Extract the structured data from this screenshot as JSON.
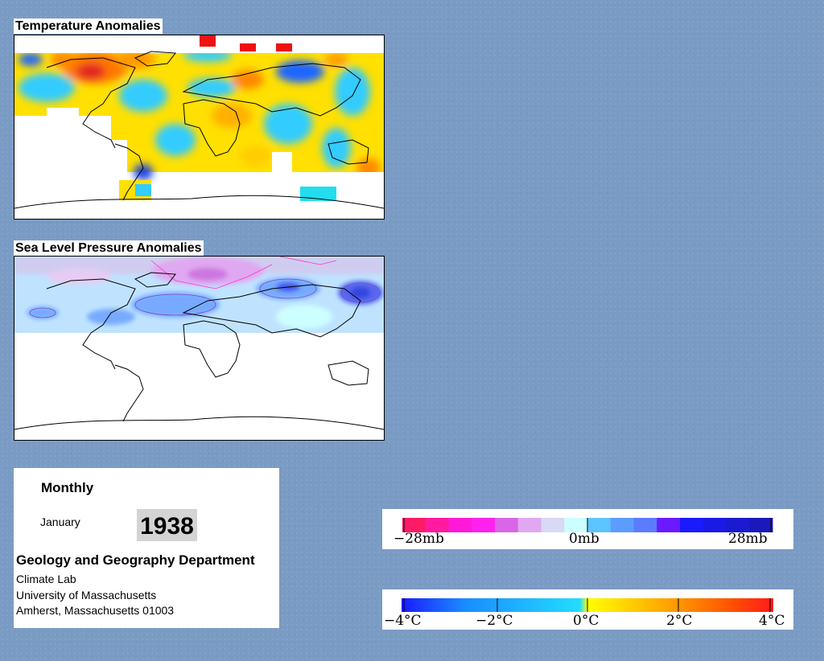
{
  "temperature_map": {
    "title": "Temperature Anomalies"
  },
  "pressure_map": {
    "title": "Sea Level Pressure Anomalies"
  },
  "info": {
    "frequency": "Monthly",
    "month": "January",
    "year": "1938",
    "department": "Geology and Geography Department",
    "lines": [
      "Climate Lab",
      "University of Massachusetts",
      "Amherst, Massachusetts 01003"
    ]
  },
  "pressure_legend": {
    "labels": [
      "−28mb",
      "0mb",
      "28mb"
    ],
    "colors": [
      "#ff1a66",
      "#ff1aa0",
      "#ff1ad9",
      "#ff22ee",
      "#d966e6",
      "#e0a8f0",
      "#d9d9f5",
      "#ccffff",
      "#5cc4ff",
      "#5c9cff",
      "#5c7cff",
      "#6b1aff",
      "#1a1aff",
      "#1a1ae6",
      "#1a1ad0",
      "#1a1abb"
    ]
  },
  "temperature_legend": {
    "labels": [
      "−4°C",
      "−2°C",
      "0°C",
      "2°C",
      "4°C"
    ],
    "gradient": [
      "#1a1aff",
      "#1a8cff",
      "#22ddff",
      "#ffff00",
      "#ffaa00",
      "#ff5500",
      "#ff1a1a"
    ]
  }
}
